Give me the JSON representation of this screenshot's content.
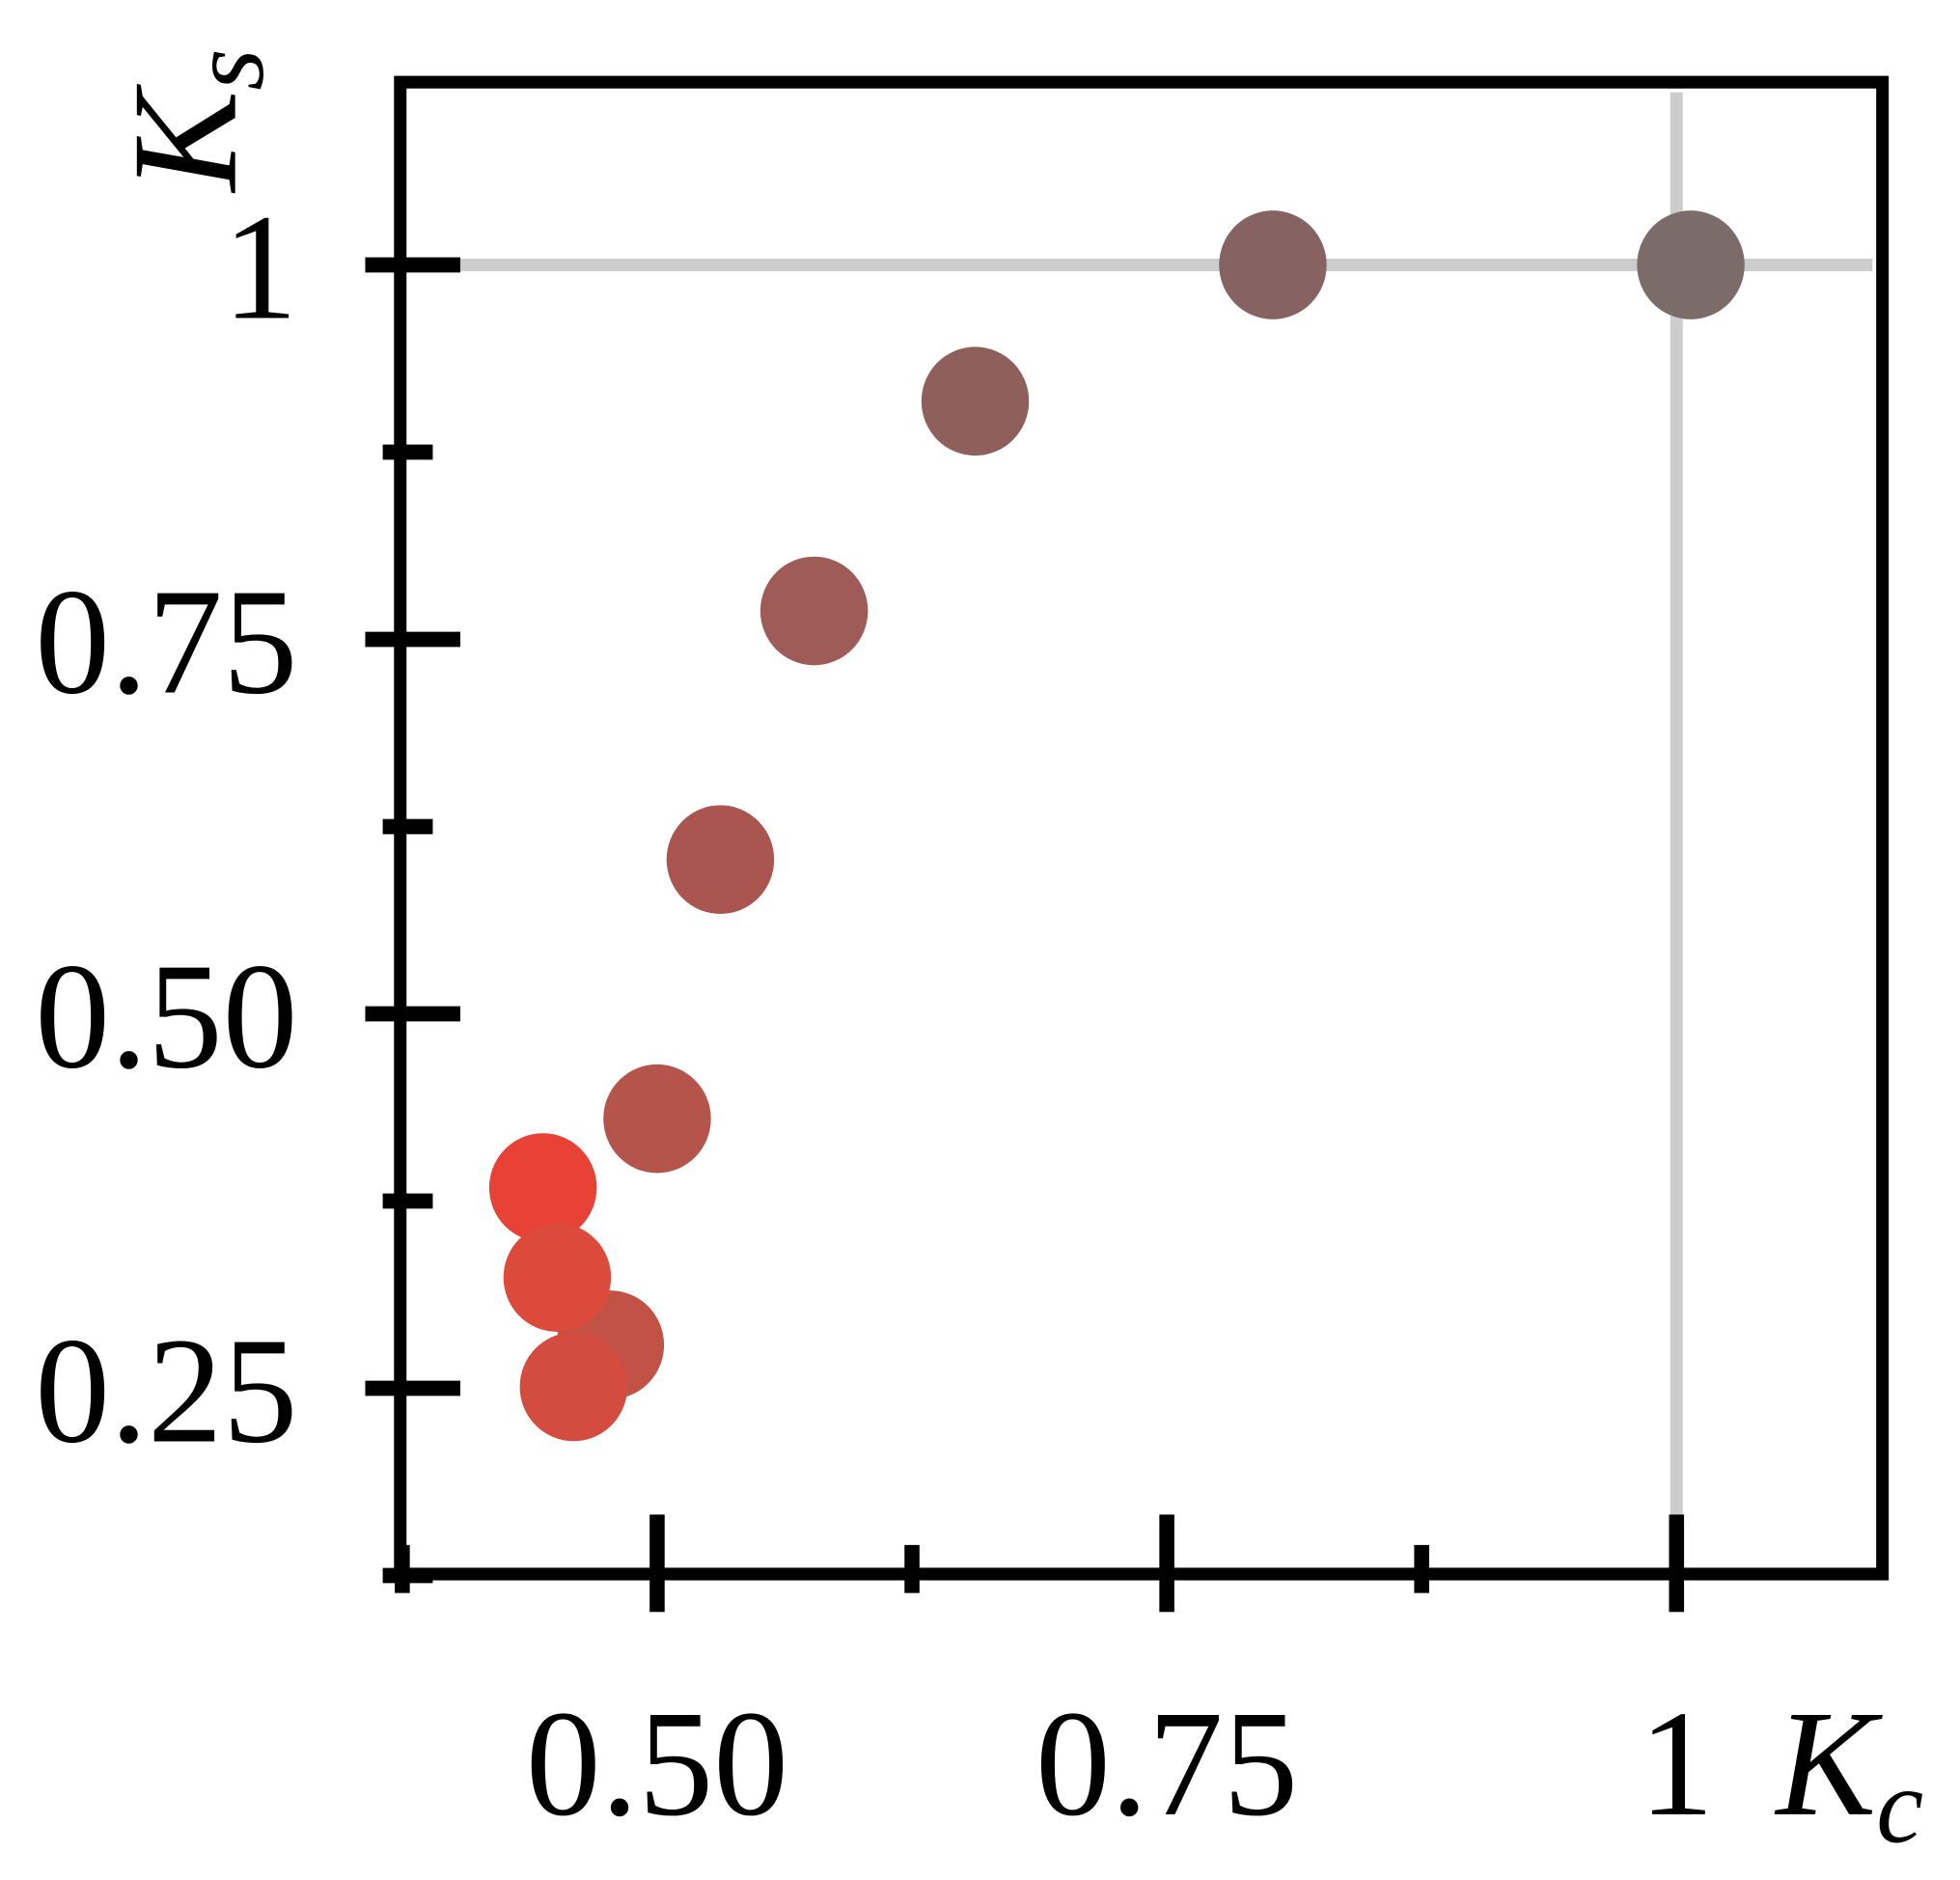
{
  "chart_data": {
    "type": "scatter",
    "xlabel": {
      "symbol": "K",
      "subscript": "c"
    },
    "ylabel": {
      "symbol": "K",
      "subscript": "s"
    },
    "x": [
      1.007,
      0.802,
      0.656,
      0.577,
      0.531,
      0.5,
      0.444,
      0.477,
      0.451,
      0.459
    ],
    "y": [
      1.0,
      1.0,
      0.909,
      0.769,
      0.603,
      0.43,
      0.384,
      0.279,
      0.324,
      0.251
    ],
    "colors": [
      "#7b6b69",
      "#866361",
      "#8f605b",
      "#9e5b57",
      "#ab5550",
      "#b5544b",
      "#e84135",
      "#c35246",
      "#dc4a3b",
      "#d44c3f"
    ],
    "xlim": [
      0.374,
      1.101
    ],
    "ylim": [
      0.126,
      1.122
    ],
    "xticks": [
      {
        "value": 0.5,
        "label": "0.50"
      },
      0.75,
      1
    ],
    "yticks": [
      0.25,
      {
        "value": 0.5,
        "label": "0.50"
      },
      0.75,
      1
    ],
    "xminor_ticks": [
      0.375,
      0.625,
      0.875
    ],
    "yminor_ticks": [
      0.125,
      0.375,
      0.625,
      0.875
    ],
    "xgrid": [
      1
    ],
    "ygrid": [
      1
    ]
  }
}
